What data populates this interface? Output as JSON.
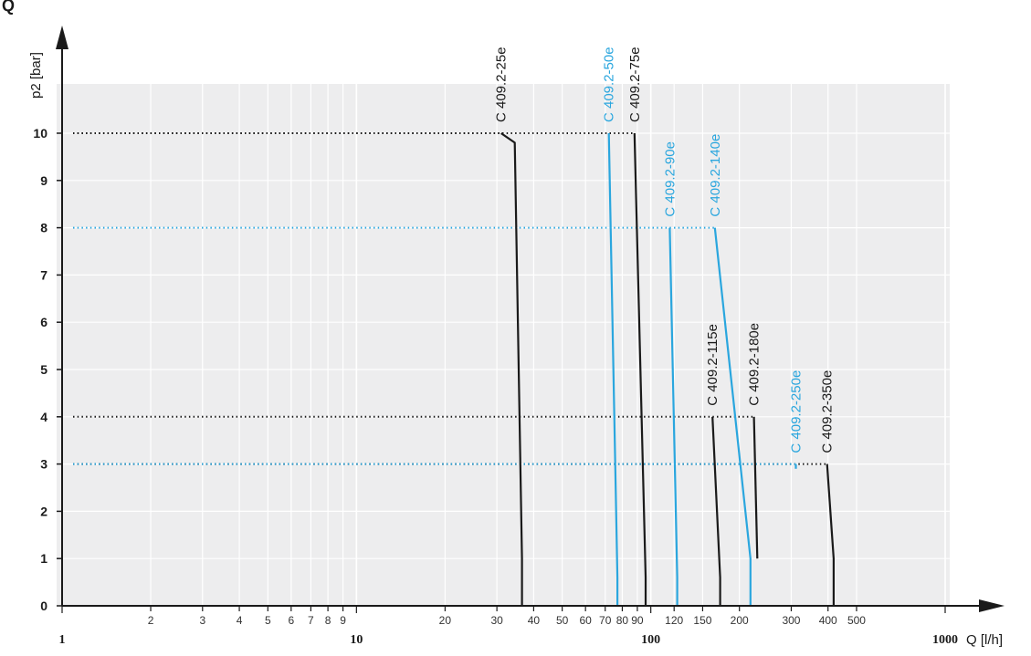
{
  "chart_data": {
    "type": "line",
    "xlabel": "Q [l/h]",
    "ylabel": "p2 [bar]",
    "x_scale": "log",
    "xlim": [
      1,
      1000
    ],
    "ylim": [
      0,
      11
    ],
    "grid": true,
    "x_ticks": [
      {
        "value": 1,
        "label": "1",
        "major": true
      },
      {
        "value": 2,
        "label": "2",
        "major": false
      },
      {
        "value": 3,
        "label": "3",
        "major": false
      },
      {
        "value": 4,
        "label": "4",
        "major": false
      },
      {
        "value": 5,
        "label": "5",
        "major": false
      },
      {
        "value": 6,
        "label": "6",
        "major": false
      },
      {
        "value": 7,
        "label": "7",
        "major": false
      },
      {
        "value": 8,
        "label": "8",
        "major": false
      },
      {
        "value": 9,
        "label": "9",
        "major": false
      },
      {
        "value": 10,
        "label": "10",
        "major": true
      },
      {
        "value": 20,
        "label": "20",
        "major": false
      },
      {
        "value": 30,
        "label": "30",
        "major": false
      },
      {
        "value": 40,
        "label": "40",
        "major": false
      },
      {
        "value": 50,
        "label": "50",
        "major": false
      },
      {
        "value": 60,
        "label": "60",
        "major": false
      },
      {
        "value": 70,
        "label": "70",
        "major": false
      },
      {
        "value": 80,
        "label": "80",
        "major": false
      },
      {
        "value": 90,
        "label": "90",
        "major": false
      },
      {
        "value": 100,
        "label": "100",
        "major": true
      },
      {
        "value": 120,
        "label": "120",
        "major": false
      },
      {
        "value": 150,
        "label": "150",
        "major": false
      },
      {
        "value": 200,
        "label": "200",
        "major": false
      },
      {
        "value": 300,
        "label": "300",
        "major": false
      },
      {
        "value": 400,
        "label": "400",
        "major": false
      },
      {
        "value": 500,
        "label": "500",
        "major": false
      },
      {
        "value": 1000,
        "label": "1000",
        "major": true
      }
    ],
    "y_ticks": [
      "0",
      "1",
      "2",
      "3",
      "4",
      "5",
      "6",
      "7",
      "8",
      "9",
      "10"
    ],
    "series": [
      {
        "name": "C 409.2-25e",
        "color": "#1a1a1a",
        "x": [
          31,
          34.5,
          36.5,
          36.5
        ],
        "y": [
          10,
          9.8,
          1,
          0
        ]
      },
      {
        "name": "C 409.2-50e",
        "color": "#2aa6de",
        "x": [
          72,
          77,
          77
        ],
        "y": [
          10,
          0.6,
          0
        ]
      },
      {
        "name": "C 409.2-75e",
        "color": "#1a1a1a",
        "x": [
          88,
          96,
          96
        ],
        "y": [
          10,
          0.6,
          0
        ]
      },
      {
        "name": "C 409.2-90e",
        "color": "#2aa6de",
        "x": [
          116,
          123,
          123
        ],
        "y": [
          8,
          0.6,
          0
        ]
      },
      {
        "name": "C 409.2-140e",
        "color": "#2aa6de",
        "x": [
          165,
          218,
          218
        ],
        "y": [
          8,
          1,
          0
        ]
      },
      {
        "name": "C 409.2-115e",
        "color": "#1a1a1a",
        "x": [
          162,
          172,
          172
        ],
        "y": [
          4,
          0.6,
          0
        ]
      },
      {
        "name": "C 409.2-180e",
        "color": "#1a1a1a",
        "x": [
          224,
          230,
          230
        ],
        "y": [
          4,
          1,
          1
        ]
      },
      {
        "name": "C 409.2-250e",
        "color": "#2aa6de",
        "x": [
          311,
          311
        ],
        "y": [
          3,
          2.9
        ]
      },
      {
        "name": "C 409.2-350e",
        "color": "#1a1a1a",
        "x": [
          397,
          418,
          418
        ],
        "y": [
          3,
          1,
          0
        ]
      }
    ],
    "reference_lines": [
      {
        "y": 10,
        "x_to": 31,
        "color": "#1a1a1a"
      },
      {
        "y": 10,
        "x_to": 88,
        "color": "#1a1a1a"
      },
      {
        "y": 8,
        "x_to": 165,
        "color": "#2aa6de"
      },
      {
        "y": 4,
        "x_to": 224,
        "color": "#1a1a1a"
      },
      {
        "y": 3,
        "x_to": 397,
        "color": "#1a1a1a"
      },
      {
        "y": 3,
        "x_to": 311,
        "color": "#2aa6de"
      }
    ]
  }
}
